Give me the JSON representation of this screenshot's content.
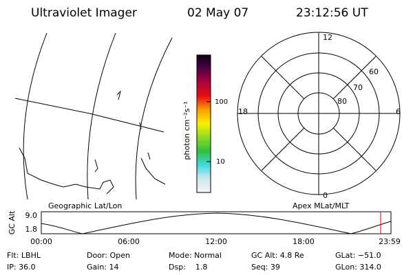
{
  "header": {
    "instrument": "Ultraviolet Imager",
    "date": "02 May 07",
    "time": "23:12:56 UT"
  },
  "colorbar": {
    "label": "photon cm⁻²s⁻¹",
    "ticks": [
      "100",
      "10"
    ]
  },
  "polar": {
    "mlt_labels": [
      "12",
      "18",
      "6",
      "0"
    ],
    "lat_labels": [
      "60",
      "70",
      "80"
    ]
  },
  "panel_labels": {
    "left": "Geographic Lat/Lon",
    "right": "Apex MLat/MLT"
  },
  "altitude_plot": {
    "axis_label": "GC Alt",
    "y_labels": [
      "9.0",
      "1.8"
    ],
    "x_labels": [
      "00:00",
      "06:00",
      "12:00",
      "18:00",
      "23:59"
    ]
  },
  "status": {
    "flt": "Flt: LBHL",
    "ip": "IP: 36.0",
    "door": "Door: Open",
    "gain": "Gain: 14",
    "mode": "Mode: Normal",
    "dsp": "Dsp:    1.8",
    "gc_alt": "GC Alt: 4.8 Re",
    "seq": "Seq: 39",
    "glat": "GLat: −51.0",
    "glon": "GLon: 314.0"
  }
}
